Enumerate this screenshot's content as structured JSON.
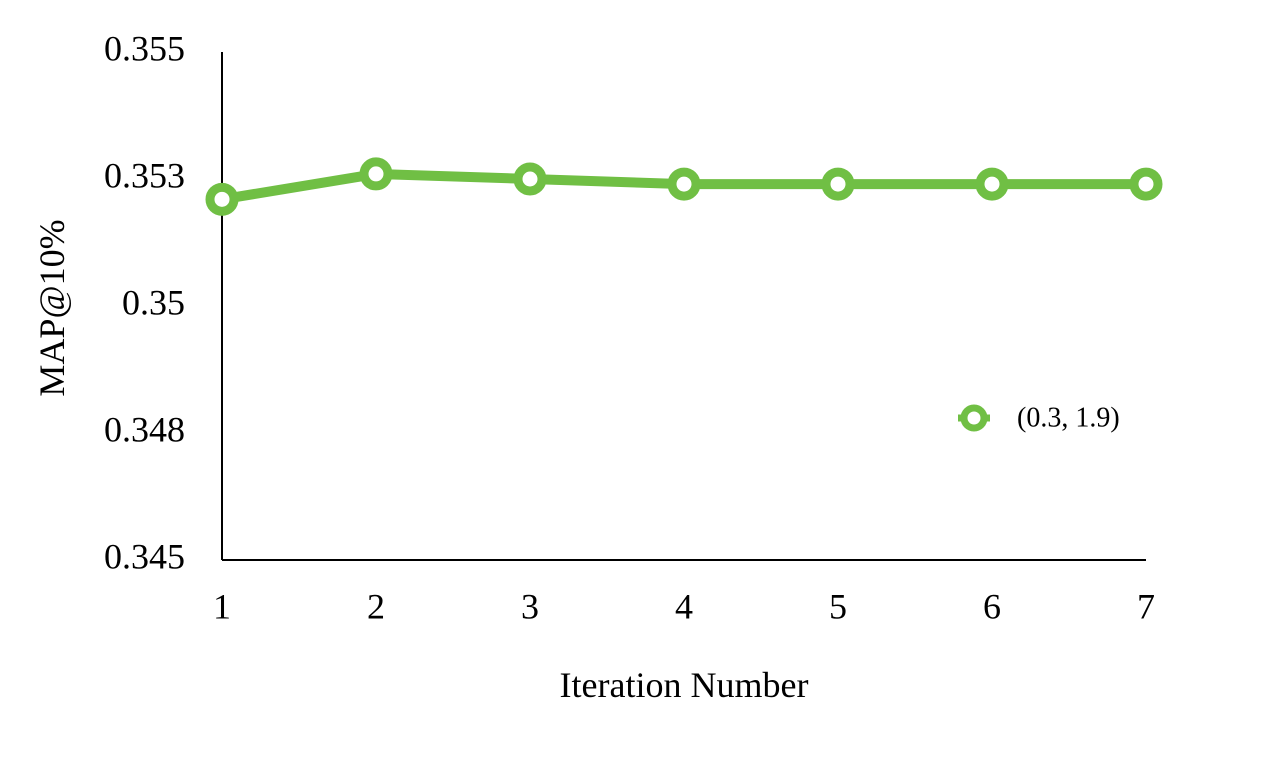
{
  "chart_data": {
    "type": "line",
    "x": [
      1,
      2,
      3,
      4,
      5,
      6,
      7
    ],
    "x_tick_labels": [
      "1",
      "2",
      "3",
      "4",
      "5",
      "6",
      "7"
    ],
    "series": [
      {
        "name": "(0.3, 1.9)",
        "color": "#70bf44",
        "values": [
          0.3521,
          0.3526,
          0.3525,
          0.3524,
          0.3524,
          0.3524,
          0.3524
        ]
      }
    ],
    "xlabel": "Iteration Number",
    "ylabel": "MAP@10%",
    "y_tick_labels": [
      "0.355",
      "0.353",
      "0.35",
      "0.348",
      "0.345"
    ],
    "y_ticks": [
      0.355,
      0.3525,
      0.35,
      0.3475,
      0.345
    ],
    "ylim": [
      0.345,
      0.355
    ],
    "xlim": [
      1,
      7
    ],
    "grid": false,
    "legend_position": "right"
  }
}
